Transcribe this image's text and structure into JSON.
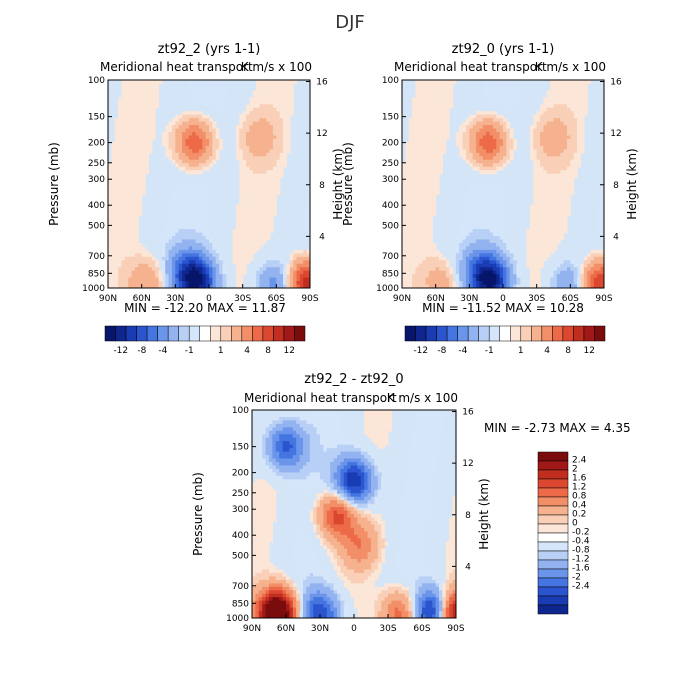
{
  "chart_data": [
    {
      "type": "heatmap",
      "title": "zt92_2 (yrs 1-1)",
      "subtitle": "Meridional heat transport",
      "units": "K m/s x 100",
      "xlabel": "",
      "ylabel": "Pressure (mb)",
      "y2label": "Height (km)",
      "x_ticks": [
        "90N",
        "60N",
        "30N",
        "0",
        "30S",
        "60S",
        "90S"
      ],
      "y_ticks": [
        "100",
        "150",
        "200",
        "250",
        "300",
        "400",
        "500",
        "700",
        "850",
        "1000"
      ],
      "y2_ticks": [
        "16",
        "12",
        "8",
        "4"
      ],
      "stats": "MIN = -12.20   MAX =  11.87",
      "min": -12.2,
      "max": 11.87,
      "legend_labels": [
        "-12",
        "-8",
        "-4",
        "-1",
        "1",
        "4",
        "8",
        "12"
      ],
      "features": [
        {
          "lat": 13,
          "p": 200,
          "value": 8.0
        },
        {
          "lat": -45,
          "p": 190,
          "value": 2.5
        },
        {
          "lat": 10,
          "p": 935,
          "value": -12.2
        },
        {
          "lat": 20,
          "p": 830,
          "value": -6.0
        },
        {
          "lat": -58,
          "p": 960,
          "value": -5.0
        },
        {
          "lat": 55,
          "p": 950,
          "value": 4.0
        },
        {
          "lat": -87,
          "p": 950,
          "value": 11.87
        }
      ]
    },
    {
      "type": "heatmap",
      "title": "zt92_0 (yrs 1-1)",
      "subtitle": "Meridional heat transport",
      "units": "K m/s x 100",
      "xlabel": "",
      "ylabel": "Pressure (mb)",
      "y2label": "Height (km)",
      "x_ticks": [
        "90N",
        "60N",
        "30N",
        "0",
        "30S",
        "60S",
        "90S"
      ],
      "y_ticks": [
        "100",
        "150",
        "200",
        "250",
        "300",
        "400",
        "500",
        "700",
        "850",
        "1000"
      ],
      "y2_ticks": [
        "16",
        "12",
        "8",
        "4"
      ],
      "stats": "MIN = -11.52   MAX =  10.28",
      "min": -11.52,
      "max": 10.28,
      "legend_labels": [
        "-12",
        "-8",
        "-4",
        "-1",
        "1",
        "4",
        "8",
        "12"
      ],
      "features": [
        {
          "lat": 13,
          "p": 200,
          "value": 8.0
        },
        {
          "lat": -45,
          "p": 190,
          "value": 2.5
        },
        {
          "lat": 10,
          "p": 935,
          "value": -11.52
        },
        {
          "lat": 20,
          "p": 830,
          "value": -6.0
        },
        {
          "lat": -58,
          "p": 960,
          "value": -4.0
        },
        {
          "lat": 55,
          "p": 950,
          "value": 3.0
        },
        {
          "lat": -87,
          "p": 950,
          "value": 10.28
        }
      ]
    },
    {
      "type": "heatmap",
      "title": "zt92_2 - zt92_0",
      "subtitle": "Meridional heat transport",
      "units": "K m/s x 100",
      "xlabel": "",
      "ylabel": "Pressure (mb)",
      "y2label": "Height (km)",
      "x_ticks": [
        "90N",
        "60N",
        "30N",
        "0",
        "30S",
        "60S",
        "90S"
      ],
      "y_ticks": [
        "100",
        "150",
        "200",
        "250",
        "300",
        "400",
        "500",
        "700",
        "850",
        "1000"
      ],
      "y2_ticks": [
        "16",
        "12",
        "8",
        "4"
      ],
      "stats": "MIN =   -2.73   MAX =    4.35",
      "min": -2.73,
      "max": 4.35,
      "legend_labels": [
        "2.4",
        "2",
        "1.6",
        "1.2",
        "0.8",
        "0.4",
        "0.2",
        "0",
        "-0.2",
        "-0.4",
        "-0.8",
        "-1.2",
        "-1.6",
        "-2",
        "-2.4"
      ],
      "features": [
        {
          "lat": 0,
          "p": 220,
          "value": -2.5
        },
        {
          "lat": 60,
          "p": 150,
          "value": -1.8
        },
        {
          "lat": 15,
          "p": 320,
          "value": 1.8
        },
        {
          "lat": -5,
          "p": 450,
          "value": 1.0
        },
        {
          "lat": 68,
          "p": 950,
          "value": 4.35
        },
        {
          "lat": 30,
          "p": 960,
          "value": -2.0
        },
        {
          "lat": -70,
          "p": 940,
          "value": -2.73
        },
        {
          "lat": -88,
          "p": 960,
          "value": 3.0
        },
        {
          "lat": -40,
          "p": 960,
          "value": 1.5
        }
      ]
    }
  ],
  "figure_title": "DJF",
  "colors": {
    "neg": [
      "#d6e6fa",
      "#b8d0f6",
      "#92b3f0",
      "#6a95ea",
      "#4575e0",
      "#2a55cf",
      "#1a3cb3",
      "#0f268f",
      "#07156a"
    ],
    "pos": [
      "#fbe6d8",
      "#f9d0b7",
      "#f6b28e",
      "#f28e68",
      "#ec6a48",
      "#dc4730",
      "#c02e1f",
      "#a01818",
      "#7a0c0c"
    ],
    "background": "#d4e5f7"
  }
}
